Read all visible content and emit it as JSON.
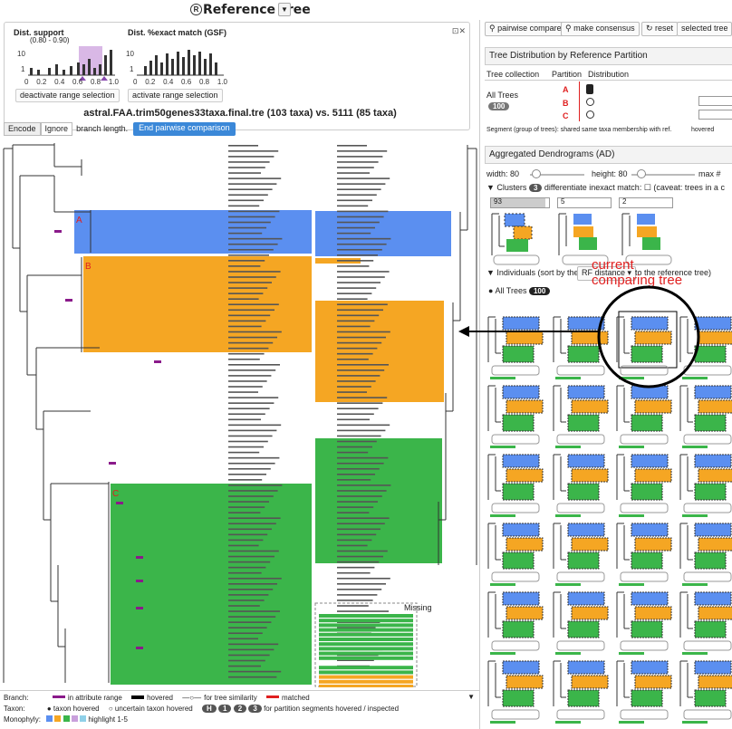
{
  "app": {
    "title": "Reference Tree",
    "title_icon": "R"
  },
  "distributions": {
    "support": {
      "title": "Dist. support",
      "range": "(0.80 - 0.90)",
      "y_ticks": [
        "10",
        "1"
      ],
      "x_ticks": [
        "0",
        "0.2",
        "0.4",
        "0.6",
        "0.8",
        "1.0"
      ],
      "button": "deactivate range selection"
    },
    "exact": {
      "title": "Dist. %exact match (GSF)",
      "y_ticks": [
        "10",
        "1"
      ],
      "x_ticks": [
        "0",
        "0.2",
        "0.4",
        "0.6",
        "0.8",
        "1.0"
      ],
      "button": "activate range selection"
    }
  },
  "tree": {
    "title": "astral.FAA.trim50genes33taxa.final.tre (103 taxa) vs. 5111 (85 taxa)",
    "encode_label": "Encode",
    "ignore_label": "Ignore",
    "branch_length_label": "branch length.",
    "pairwise_button": "End pairwise comparison",
    "missing_label": "Missing",
    "partition_labels": [
      "A",
      "B",
      "C"
    ]
  },
  "legend": {
    "branch_label": "Branch:",
    "in_attr": "in attribute range",
    "hovered": "hovered",
    "for_tree_sim": "for tree similarity",
    "matched": "matched",
    "taxon_label": "Taxon:",
    "taxon_hovered": "taxon hovered",
    "uncertain": "uncertain taxon hovered",
    "for_partition": "for partition segments hovered / inspected",
    "monophyly_label": "Monophyly:",
    "highlight": "highlight 1-5",
    "badges": [
      "H",
      "1",
      "2",
      "3"
    ]
  },
  "right": {
    "pairwise_compare": "pairwise compare",
    "make_consensus": "make consensus",
    "reset": "reset",
    "selected_trees": "selected tree",
    "td_header": "Tree Distribution by Reference Partition",
    "col_collection": "Tree collection",
    "col_partition": "Partition",
    "col_distribution": "Distribution",
    "all_trees": "All Trees",
    "count": "100",
    "segment_note": "Segment (group of trees):  shared same taxa membership with ref.",
    "hovered": "hovered",
    "ad_header": "Aggregated Dendrograms (AD)",
    "width_label": "width: 80",
    "height_label": "height: 80",
    "max_label": "max #",
    "clusters_label": "Clusters",
    "clusters_count": "3",
    "diff_label": "differentiate inexact match:",
    "caveat": "(caveat: trees in a c",
    "cluster_sizes": [
      "93",
      "5",
      "2"
    ],
    "individuals_label": "Individuals",
    "sort_label": "(sort by the",
    "rf_distance": "RF distance",
    "to_ref": "to the reference tree)",
    "all_trees_tab": "All Trees",
    "all_trees_count": "100",
    "overlay": "current comparing tree",
    "overlay_line1": "current",
    "overlay_line2": "comparing tree"
  },
  "colors": {
    "blue": "#5b8ff0",
    "orange": "#f5a623",
    "green": "#3bb54a",
    "purple": "#c9a0dc",
    "red": "#e02020"
  }
}
